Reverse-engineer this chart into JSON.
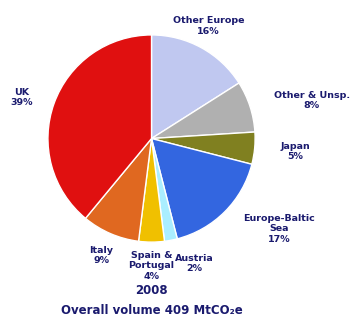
{
  "labels": [
    "Other Europe",
    "Other & Unsp.",
    "Japan",
    "Europe-Baltic\nSea",
    "Austria",
    "Spain &\nPortugal",
    "Italy",
    "UK"
  ],
  "values": [
    16,
    8,
    5,
    17,
    2,
    4,
    9,
    39
  ],
  "colors": [
    "#c0c8f0",
    "#b0b0b0",
    "#808020",
    "#3366e0",
    "#aaeeff",
    "#f0c000",
    "#e06820",
    "#e01010"
  ],
  "label_display": [
    "Other Europe\n16%",
    "Other & Unsp.\n8%",
    "Japan\n5%",
    "Europe-Baltic\nSea\n17%",
    "Austria\n2%",
    "Spain &\nPortugal\n4%",
    "Italy\n9%",
    "UK\n39%"
  ],
  "title_line1": "2008",
  "title_line2": "Overall volume 409 MtCO",
  "title_sub": "2",
  "title_end": "e",
  "text_color": "#1a1a6e",
  "background_color": "#ffffff",
  "startangle": 90
}
